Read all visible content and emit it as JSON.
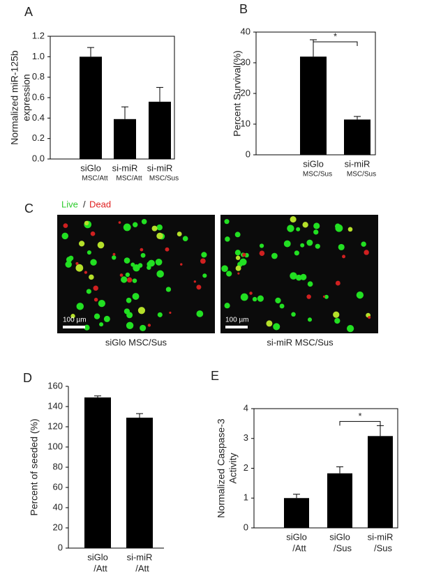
{
  "chart_data": [
    {
      "type": "bar",
      "panel": "A",
      "ylabel": [
        "Normalized miR-125b",
        "expression"
      ],
      "categories": [
        "siGlo",
        "si-miR",
        "si-miR"
      ],
      "sublabels": [
        "MSC/Att",
        "MSC/Att",
        "MSC/Sus"
      ],
      "values": [
        1.0,
        0.39,
        0.56
      ],
      "errors": [
        0.09,
        0.12,
        0.14
      ],
      "color": "#000000",
      "ylim": [
        0,
        1.2
      ],
      "yticks": [
        {
          "value": 0,
          "label": "0.0"
        },
        {
          "value": 0.2,
          "label": "0.2"
        },
        {
          "value": 0.4,
          "label": "0.4"
        },
        {
          "value": 0.6,
          "label": "0.6"
        },
        {
          "value": 0.8,
          "label": "0.8"
        },
        {
          "value": 1.0,
          "label": "1.0"
        },
        {
          "value": 1.2,
          "label": "1.2"
        }
      ],
      "frame": true
    },
    {
      "type": "bar",
      "panel": "B",
      "ylabel": [
        "Percent Survival(%)"
      ],
      "categories": [
        "siGlo",
        "si-miR"
      ],
      "sublabels": [
        "MSC/Sus",
        "MSC/Sus"
      ],
      "values": [
        32,
        11.5
      ],
      "errors": [
        5.5,
        1
      ],
      "color": "#000000",
      "ylim": [
        0,
        40
      ],
      "yticks": [
        0,
        10,
        20,
        30,
        40
      ],
      "frame": true,
      "annotation": "*"
    },
    {
      "type": "bar",
      "panel": "D",
      "ylabel": [
        "Percent of seeded (%)"
      ],
      "categories": [
        "siGlo",
        "si-miR"
      ],
      "sublabels": [
        "/Att",
        "/Att"
      ],
      "values": [
        149,
        129
      ],
      "errors": [
        1.5,
        4
      ],
      "color": "#000000",
      "ylim": [
        0,
        160
      ],
      "yticks": [
        0,
        20,
        40,
        60,
        80,
        100,
        120,
        140,
        160
      ],
      "frame": false
    },
    {
      "type": "bar",
      "panel": "E",
      "ylabel": [
        "Normalized Caspase-3",
        "Activity"
      ],
      "categories": [
        "siGlo",
        "siGlo",
        "si-miR"
      ],
      "sublabels": [
        "/Att",
        "/Sus",
        "/Sus"
      ],
      "values": [
        1.0,
        1.83,
        3.08
      ],
      "errors": [
        0.13,
        0.22,
        0.35
      ],
      "color": "#000000",
      "ylim": [
        0,
        4
      ],
      "yticks": [
        0,
        1,
        2,
        3,
        4
      ],
      "frame": true,
      "annotation": "*"
    }
  ],
  "image_panel": {
    "panel": "C",
    "legend_live": "Live",
    "legend_sep": "/",
    "legend_dead": "Dead",
    "scale_bar": "100 µm",
    "captions": [
      "siGlo MSC/Sus",
      "si-miR  MSC/Sus"
    ]
  }
}
